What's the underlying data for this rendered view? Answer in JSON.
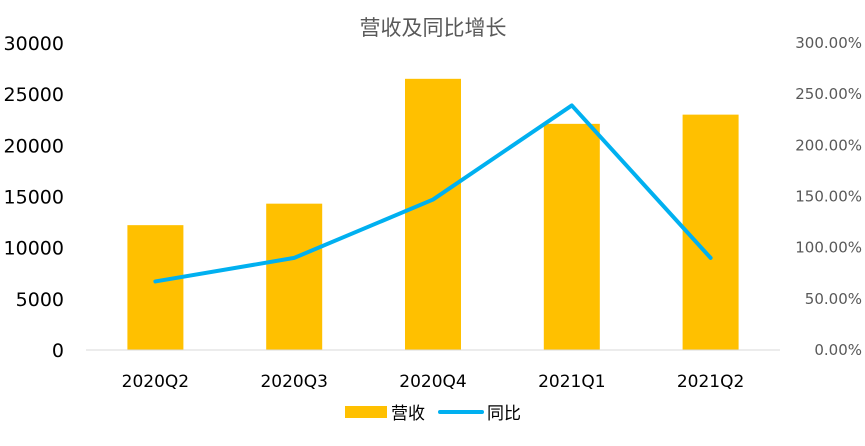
{
  "chart_data": {
    "type": "bar",
    "title": "营收及同比增长",
    "categories": [
      "2020Q2",
      "2020Q3",
      "2020Q4",
      "2021Q1",
      "2021Q2"
    ],
    "series": [
      {
        "name": "营收",
        "type": "bar",
        "axis": "left",
        "color": "#FFC000",
        "values": [
          12200,
          14300,
          26500,
          22100,
          23000
        ]
      },
      {
        "name": "同比",
        "type": "line",
        "axis": "right",
        "color": "#00B0F0",
        "values": [
          0.67,
          0.9,
          1.47,
          2.39,
          0.9
        ]
      }
    ],
    "y_left": {
      "min": 0,
      "max": 30000,
      "ticks": [
        "0",
        "5000",
        "10000",
        "15000",
        "20000",
        "25000",
        "30000"
      ]
    },
    "y_right": {
      "min": 0,
      "max": 3,
      "ticks": [
        "0.00%",
        "50.00%",
        "100.00%",
        "150.00%",
        "200.00%",
        "250.00%",
        "300.00%"
      ]
    },
    "xlabel": "",
    "ylabel": "",
    "grid": false,
    "legend": "bottom"
  }
}
